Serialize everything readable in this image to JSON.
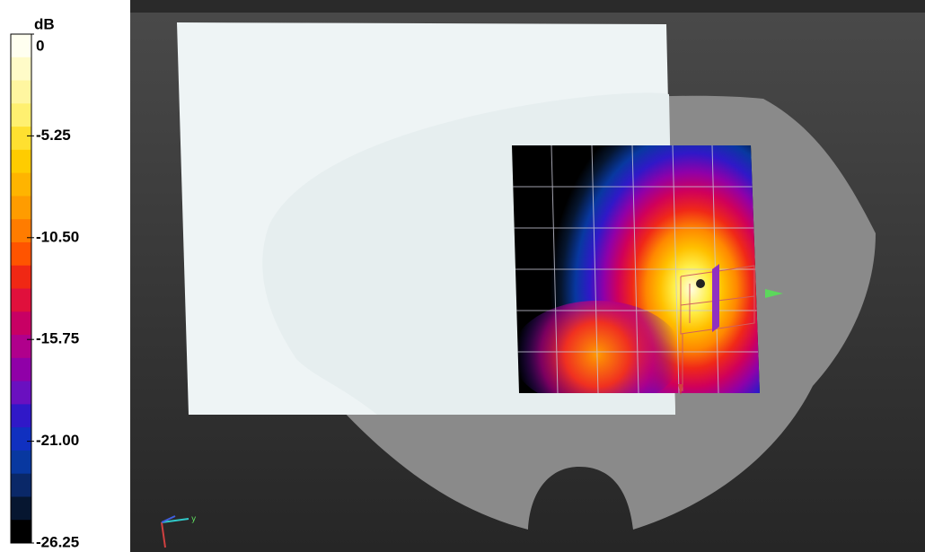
{
  "legend": {
    "unit": "dB",
    "ticks": [
      "0",
      "-5.25",
      "-10.50",
      "-15.75",
      "-21.00",
      "-26.25"
    ]
  },
  "viewport": {
    "axis_label": "y"
  }
}
